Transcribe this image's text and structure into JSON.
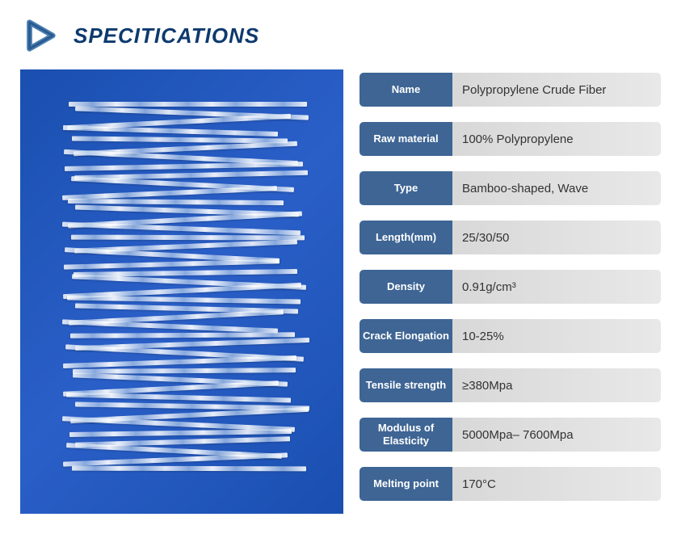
{
  "header": {
    "title": "SPECITICATIONS",
    "icon_color": "#4a7fb0",
    "icon_shadow": "#6090c0"
  },
  "colors": {
    "label_bg": "#3e6594",
    "label_text": "#ffffff",
    "value_bg_start": "#d8d8d8",
    "value_bg_end": "#e8e8e8",
    "value_text": "#333333",
    "title_color": "#0d3a6e",
    "image_bg": "#1a4fb0"
  },
  "specs": [
    {
      "label": "Name",
      "value": "Polypropylene Crude Fiber"
    },
    {
      "label": "Raw material",
      "value": "100% Polypropylene"
    },
    {
      "label": "Type",
      "value": "Bamboo-shaped, Wave"
    },
    {
      "label": "Length(mm)",
      "value": "25/30/50"
    },
    {
      "label": "Density",
      "value": "0.91g/cm³"
    },
    {
      "label": "Crack Elongation",
      "value": "10-25%"
    },
    {
      "label": "Tensile strength",
      "value": "≥380Mpa"
    },
    {
      "label": "Modulus of Elasticity",
      "value": "5000Mpa– 7600Mpa"
    },
    {
      "label": "Melting point",
      "value": "170°C"
    }
  ],
  "fibers": {
    "count": 42,
    "base_width": 280,
    "spacing": 11
  }
}
